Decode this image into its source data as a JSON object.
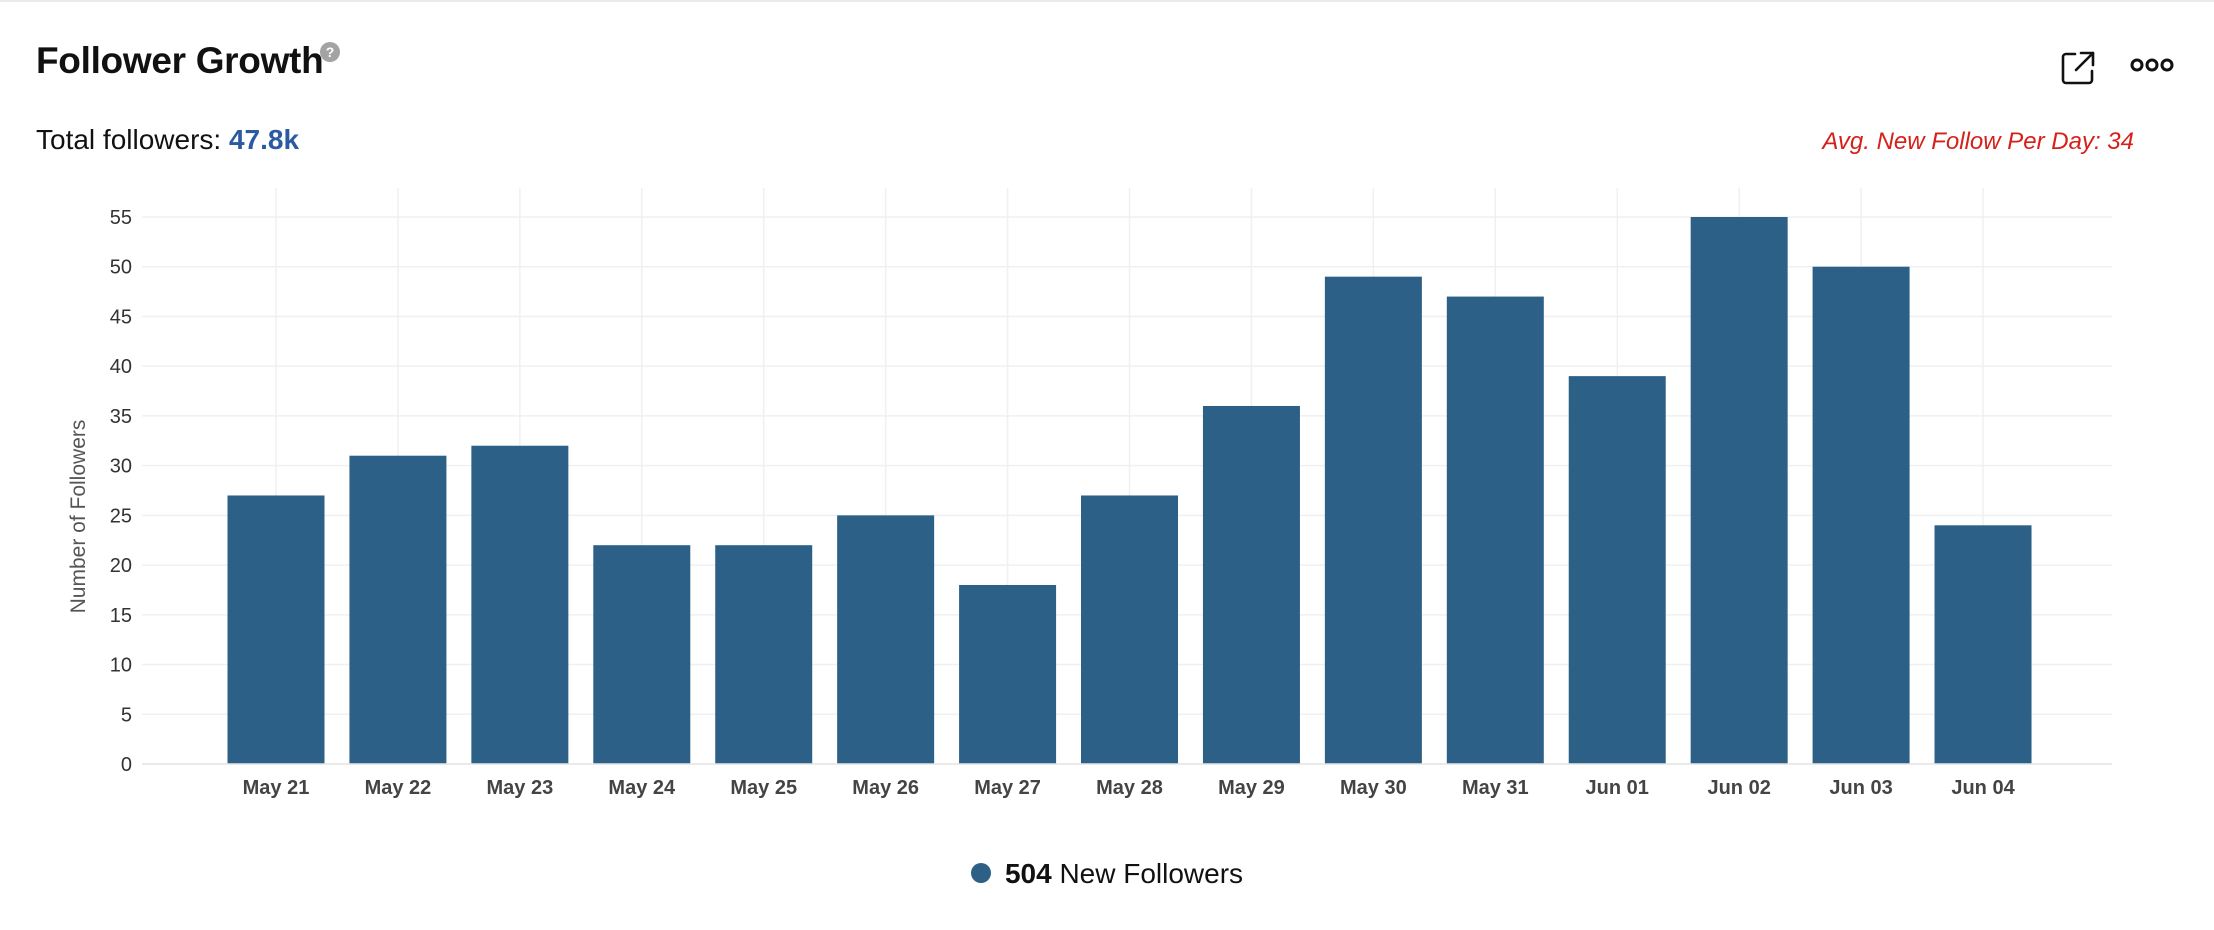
{
  "header": {
    "title": "Follower Growth",
    "help_icon": "question-mark-icon",
    "help_symbol": "?",
    "export_icon": "external-link-icon",
    "more_icon": "more-options-icon"
  },
  "summary": {
    "total_label": "Total followers:",
    "total_value": "47.8k",
    "avg_text": "Avg. New Follow Per Day: 34"
  },
  "legend": {
    "count": "504",
    "label": "New Followers"
  },
  "colors": {
    "bar": "#2c6087",
    "total_value": "#2c5aa0",
    "avg_text": "#d6201a"
  },
  "chart_data": {
    "type": "bar",
    "categories": [
      "May 21",
      "May 22",
      "May 23",
      "May 24",
      "May 25",
      "May 26",
      "May 27",
      "May 28",
      "May 29",
      "May 30",
      "May 31",
      "Jun 01",
      "Jun 02",
      "Jun 03",
      "Jun 04"
    ],
    "series": [
      {
        "name": "New Followers",
        "values": [
          27,
          31,
          32,
          22,
          22,
          25,
          18,
          27,
          36,
          49,
          47,
          39,
          55,
          50,
          24
        ]
      }
    ],
    "ylabel": "Number of Followers",
    "xlabel": "",
    "ylim": [
      0,
      55
    ],
    "yticks": [
      0,
      5,
      10,
      15,
      20,
      25,
      30,
      35,
      40,
      45,
      50,
      55
    ],
    "grid": true,
    "legend_position": "bottom-center"
  }
}
